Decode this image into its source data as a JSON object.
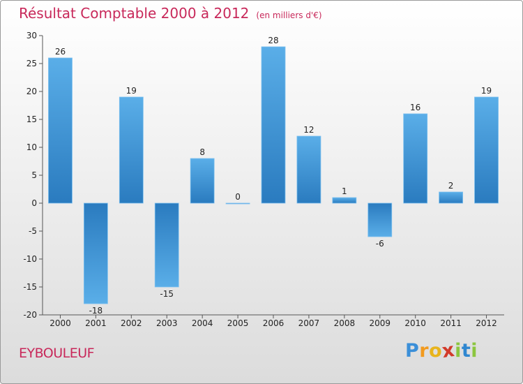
{
  "chart_data": {
    "type": "bar",
    "title": "Résultat Comptable 2000 à 2012",
    "subtitle": "(en milliers d'€)",
    "categories": [
      "2000",
      "2001",
      "2002",
      "2003",
      "2004",
      "2005",
      "2006",
      "2007",
      "2008",
      "2009",
      "2010",
      "2011",
      "2012"
    ],
    "values": [
      26,
      -18,
      19,
      -15,
      8,
      0,
      28,
      12,
      1,
      -6,
      16,
      2,
      19
    ],
    "ylim": [
      -20,
      30
    ],
    "yticks": [
      30,
      25,
      20,
      15,
      10,
      5,
      0,
      -5,
      -10,
      -15,
      -20
    ],
    "xlabel": "",
    "ylabel": "",
    "grid": false,
    "bar_color": "#3a8fd6"
  },
  "commune": "EYBOULEUF",
  "brand": {
    "letters": [
      "P",
      "r",
      "o",
      "x",
      "i",
      "t",
      "i"
    ],
    "colors": [
      "#3b8fd8",
      "#f29a1e",
      "#e8b41c",
      "#d23a2a",
      "#8cc63f",
      "#2f87d0",
      "#8cc63f"
    ]
  }
}
